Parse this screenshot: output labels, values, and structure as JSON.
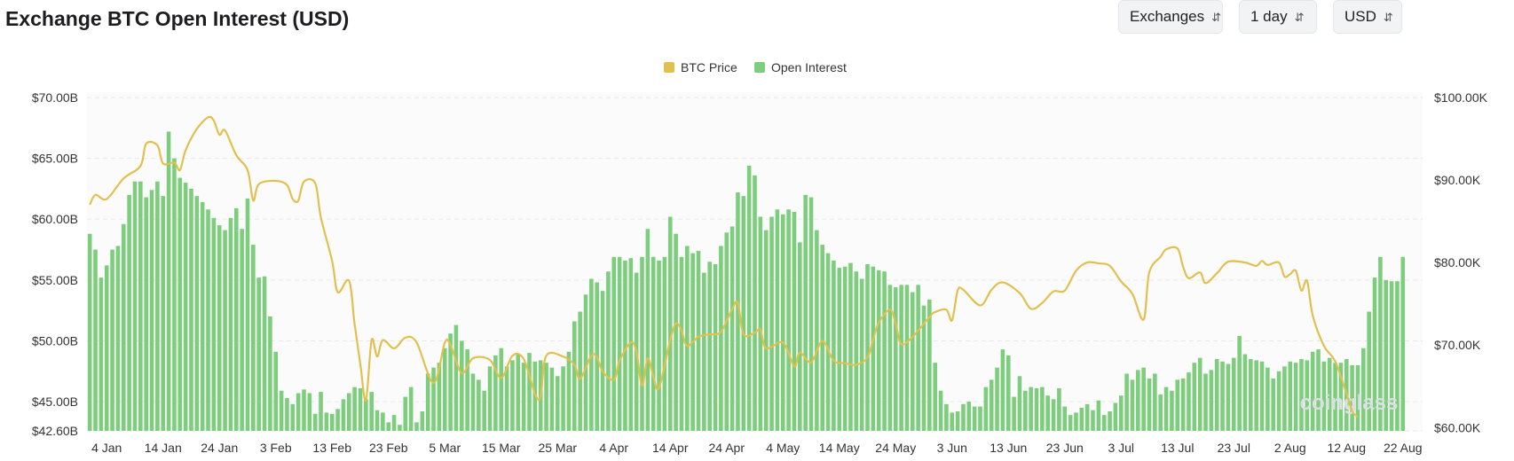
{
  "header": {
    "title": "Exchange BTC Open Interest (USD)",
    "controls": [
      {
        "name": "exchanges-select",
        "label": "Exchanges"
      },
      {
        "name": "interval-select",
        "label": "1 day"
      },
      {
        "name": "currency-select",
        "label": "USD"
      }
    ]
  },
  "colors": {
    "open_interest": "#7ccd7c",
    "btc_price": "#e2c04f",
    "grid": "#e9e9ec",
    "plot_bg": "#fbfbfc",
    "axis_text": "#333333"
  },
  "chart_data": {
    "type": "bar",
    "legend_position": "top-center",
    "grid": true,
    "x_tick_labels": [
      "4 Jan",
      "14 Jan",
      "24 Jan",
      "3 Feb",
      "13 Feb",
      "23 Feb",
      "5 Mar",
      "15 Mar",
      "25 Mar",
      "4 Apr",
      "14 Apr",
      "24 Apr",
      "4 May",
      "14 May",
      "24 May",
      "3 Jun",
      "13 Jun",
      "23 Jun",
      "3 Jul",
      "13 Jul",
      "23 Jul",
      "2 Aug",
      "12 Aug",
      "22 Aug"
    ],
    "x_range": [
      "2024-01-01",
      "2024-08-24"
    ],
    "y_left": {
      "ticks": [
        42.6,
        45,
        50,
        55,
        60,
        65,
        70
      ],
      "tick_labels": [
        "$42.60B",
        "$45.00B",
        "$50.00B",
        "$55.00B",
        "$60.00B",
        "$65.00B",
        "$70.00B"
      ],
      "range": [
        42.6,
        70
      ]
    },
    "y_right": {
      "ticks": [
        60,
        70,
        80,
        90,
        100
      ],
      "tick_labels": [
        "$60.00K",
        "$70.00K",
        "$80.00K",
        "$90.00K",
        "$100.00K"
      ],
      "range": [
        59.6,
        100
      ]
    },
    "series": [
      {
        "name": "Open Interest",
        "type": "bar",
        "axis": "left",
        "unit": "USD billions",
        "values": [
          58.8,
          57.5,
          55.2,
          56.2,
          57.5,
          57.8,
          59.6,
          62.0,
          63.1,
          63.1,
          61.8,
          62.4,
          63.1,
          61.9,
          67.2,
          65.0,
          63.4,
          63.0,
          62.5,
          61.9,
          61.4,
          60.8,
          60.1,
          59.5,
          59.1,
          60.1,
          60.9,
          59.2,
          61.7,
          57.9,
          55.2,
          55.3,
          52.0,
          49.1,
          45.9,
          45.3,
          44.8,
          45.7,
          46.0,
          45.7,
          44.0,
          45.8,
          44.1,
          44.0,
          44.4,
          45.2,
          45.7,
          46.2,
          46.1,
          45.2,
          45.8,
          44.3,
          44.1,
          43.3,
          43.9,
          43.1,
          45.4,
          46.2,
          43.3,
          44.2,
          47.3,
          47.8,
          48.2,
          49.4,
          50.6,
          51.3,
          50.0,
          49.3,
          47.3,
          46.8,
          45.9,
          47.9,
          48.8,
          49.4,
          47.9,
          48.4,
          48.9,
          48.2,
          49.0,
          48.3,
          48.4,
          48.2,
          47.8,
          47.1,
          47.9,
          49.1,
          51.6,
          52.4,
          53.8,
          55.1,
          54.8,
          54.1,
          55.7,
          56.9,
          56.9,
          56.6,
          56.8,
          55.6,
          56.9,
          59.2,
          56.9,
          56.6,
          56.9,
          60.2,
          58.8,
          56.9,
          57.8,
          57.2,
          57.4,
          55.6,
          56.5,
          56.3,
          57.8,
          58.9,
          59.4,
          62.2,
          61.9,
          64.4,
          63.6,
          60.2,
          59.1,
          60.2,
          60.8,
          60.4,
          60.8,
          60.6,
          58.1,
          62.0,
          61.8,
          59.1,
          57.9,
          57.2,
          56.6,
          56.0,
          56.1,
          56.4,
          55.7,
          55.1,
          56.3,
          56.1,
          55.8,
          55.7,
          54.6,
          54.4,
          54.6,
          54.6,
          54.0,
          54.6,
          52.9,
          53.4,
          48.2,
          45.9,
          44.8,
          44.1,
          44.2,
          44.8,
          45.0,
          44.6,
          44.6,
          46.2,
          46.8,
          47.8,
          49.3,
          48.8,
          45.4,
          47.1,
          45.9,
          46.2,
          46.1,
          46.2,
          45.5,
          45.2,
          46.1,
          44.6,
          43.9,
          44.1,
          44.5,
          44.8,
          44.3,
          45.1,
          43.9,
          44.2,
          44.9,
          45.5,
          47.3,
          46.8,
          47.6,
          47.8,
          46.9,
          47.3,
          45.6,
          46.2,
          45.9,
          46.8,
          46.9,
          47.4,
          48.2,
          48.6,
          47.3,
          47.6,
          48.5,
          48.3,
          48.1,
          48.6,
          50.4,
          48.9,
          48.5,
          48.4,
          48.3,
          47.8,
          46.9,
          47.5,
          47.9,
          48.3,
          48.2,
          48.5,
          48.4,
          49.1,
          49.3,
          48.3,
          48.6,
          48.2,
          48.2,
          48.5,
          48.0,
          48.0,
          49.4,
          52.4,
          55.2,
          56.9,
          55.0,
          54.9,
          54.9,
          56.9
        ]
      },
      {
        "name": "BTC Price",
        "type": "line",
        "axis": "right",
        "unit": "USD thousands",
        "points": [
          [
            "2024-01-01",
            87.0
          ],
          [
            "2024-01-02",
            88.2
          ],
          [
            "2024-01-04",
            87.7
          ],
          [
            "2024-01-07",
            90.2
          ],
          [
            "2024-01-10",
            91.7
          ],
          [
            "2024-01-11",
            94.4
          ],
          [
            "2024-01-13",
            94.2
          ],
          [
            "2024-01-14",
            92.0
          ],
          [
            "2024-01-16",
            92.1
          ],
          [
            "2024-01-17",
            91.2
          ],
          [
            "2024-01-18",
            93.6
          ],
          [
            "2024-01-20",
            96.2
          ],
          [
            "2024-01-22",
            97.6
          ],
          [
            "2024-01-23",
            97.2
          ],
          [
            "2024-01-24",
            95.5
          ],
          [
            "2024-01-25",
            96.0
          ],
          [
            "2024-01-27",
            93.0
          ],
          [
            "2024-01-29",
            91.2
          ],
          [
            "2024-01-30",
            87.5
          ],
          [
            "2024-01-31",
            89.5
          ],
          [
            "2024-02-03",
            89.9
          ],
          [
            "2024-02-05",
            89.4
          ],
          [
            "2024-02-06",
            87.7
          ],
          [
            "2024-02-07",
            87.5
          ],
          [
            "2024-02-08",
            89.8
          ],
          [
            "2024-02-10",
            89.6
          ],
          [
            "2024-02-11",
            85.5
          ],
          [
            "2024-02-13",
            80.2
          ],
          [
            "2024-02-14",
            76.4
          ],
          [
            "2024-02-16",
            77.8
          ],
          [
            "2024-02-17",
            72.5
          ],
          [
            "2024-02-18",
            67.7
          ],
          [
            "2024-02-19",
            63.3
          ],
          [
            "2024-02-20",
            70.6
          ],
          [
            "2024-02-21",
            68.6
          ],
          [
            "2024-02-22",
            70.6
          ],
          [
            "2024-02-24",
            69.6
          ],
          [
            "2024-02-26",
            70.9
          ],
          [
            "2024-02-28",
            70.3
          ],
          [
            "2024-03-02",
            65.4
          ],
          [
            "2024-03-04",
            70.3
          ],
          [
            "2024-03-05",
            70.0
          ],
          [
            "2024-03-07",
            66.6
          ],
          [
            "2024-03-09",
            68.4
          ],
          [
            "2024-03-12",
            68.2
          ],
          [
            "2024-03-14",
            66.0
          ],
          [
            "2024-03-16",
            68.7
          ],
          [
            "2024-03-18",
            68.3
          ],
          [
            "2024-03-20",
            64.1
          ],
          [
            "2024-03-21",
            63.8
          ],
          [
            "2024-03-22",
            68.7
          ],
          [
            "2024-03-25",
            68.6
          ],
          [
            "2024-03-27",
            67.6
          ],
          [
            "2024-03-28",
            65.9
          ],
          [
            "2024-03-30",
            68.7
          ],
          [
            "2024-03-31",
            68.5
          ],
          [
            "2024-04-01",
            66.8
          ],
          [
            "2024-04-03",
            65.8
          ],
          [
            "2024-04-04",
            68.1
          ],
          [
            "2024-04-06",
            70.3
          ],
          [
            "2024-04-07",
            69.2
          ],
          [
            "2024-04-08",
            65.1
          ],
          [
            "2024-04-09",
            68.4
          ],
          [
            "2024-04-10",
            66.2
          ],
          [
            "2024-04-11",
            64.8
          ],
          [
            "2024-04-13",
            70.6
          ],
          [
            "2024-04-14",
            72.6
          ],
          [
            "2024-04-15",
            71.8
          ],
          [
            "2024-04-16",
            69.9
          ],
          [
            "2024-04-18",
            71.0
          ],
          [
            "2024-04-20",
            71.3
          ],
          [
            "2024-04-22",
            71.6
          ],
          [
            "2024-04-24",
            74.4
          ],
          [
            "2024-04-25",
            75.1
          ],
          [
            "2024-04-26",
            71.3
          ],
          [
            "2024-04-28",
            71.5
          ],
          [
            "2024-04-29",
            71.9
          ],
          [
            "2024-04-30",
            69.6
          ],
          [
            "2024-05-03",
            70.3
          ],
          [
            "2024-05-05",
            67.4
          ],
          [
            "2024-05-06",
            69.1
          ],
          [
            "2024-05-08",
            67.9
          ],
          [
            "2024-05-10",
            70.5
          ],
          [
            "2024-05-12",
            68.1
          ],
          [
            "2024-05-14",
            67.8
          ],
          [
            "2024-05-16",
            67.6
          ],
          [
            "2024-05-18",
            68.5
          ],
          [
            "2024-05-19",
            70.7
          ],
          [
            "2024-05-20",
            72.7
          ],
          [
            "2024-05-22",
            74.3
          ],
          [
            "2024-05-23",
            72.6
          ],
          [
            "2024-05-24",
            70.1
          ],
          [
            "2024-05-26",
            71.0
          ],
          [
            "2024-05-29",
            73.4
          ],
          [
            "2024-05-30",
            74.0
          ],
          [
            "2024-06-01",
            74.3
          ],
          [
            "2024-06-02",
            73.0
          ],
          [
            "2024-06-03",
            76.6
          ],
          [
            "2024-06-04",
            76.7
          ],
          [
            "2024-06-07",
            74.8
          ],
          [
            "2024-06-09",
            76.7
          ],
          [
            "2024-06-11",
            77.6
          ],
          [
            "2024-06-14",
            76.3
          ],
          [
            "2024-06-16",
            74.4
          ],
          [
            "2024-06-18",
            75.1
          ],
          [
            "2024-06-20",
            76.5
          ],
          [
            "2024-06-22",
            76.6
          ],
          [
            "2024-06-24",
            79.0
          ],
          [
            "2024-06-26",
            80.0
          ],
          [
            "2024-06-28",
            79.9
          ],
          [
            "2024-06-30",
            79.6
          ],
          [
            "2024-07-02",
            77.7
          ],
          [
            "2024-07-04",
            76.2
          ],
          [
            "2024-07-06",
            73.1
          ],
          [
            "2024-07-07",
            78.8
          ],
          [
            "2024-07-09",
            80.7
          ],
          [
            "2024-07-10",
            81.6
          ],
          [
            "2024-07-12",
            81.7
          ],
          [
            "2024-07-13",
            79.5
          ],
          [
            "2024-07-14",
            78.1
          ],
          [
            "2024-07-16",
            78.8
          ],
          [
            "2024-07-17",
            77.5
          ],
          [
            "2024-07-19",
            78.7
          ],
          [
            "2024-07-21",
            80.1
          ],
          [
            "2024-07-24",
            80.0
          ],
          [
            "2024-07-26",
            79.6
          ],
          [
            "2024-07-27",
            80.2
          ],
          [
            "2024-07-28",
            79.7
          ],
          [
            "2024-07-30",
            80.0
          ],
          [
            "2024-07-31",
            78.3
          ],
          [
            "2024-08-01",
            78.6
          ],
          [
            "2024-08-02",
            79.0
          ],
          [
            "2024-08-03",
            76.6
          ],
          [
            "2024-08-04",
            77.8
          ],
          [
            "2024-08-05",
            73.6
          ],
          [
            "2024-08-07",
            69.9
          ],
          [
            "2024-08-09",
            68.0
          ],
          [
            "2024-08-11",
            64.1
          ],
          [
            "2024-08-12",
            62.0
          ],
          [
            "2024-08-13",
            61.3
          ]
        ]
      }
    ],
    "watermark": "coinglass"
  }
}
